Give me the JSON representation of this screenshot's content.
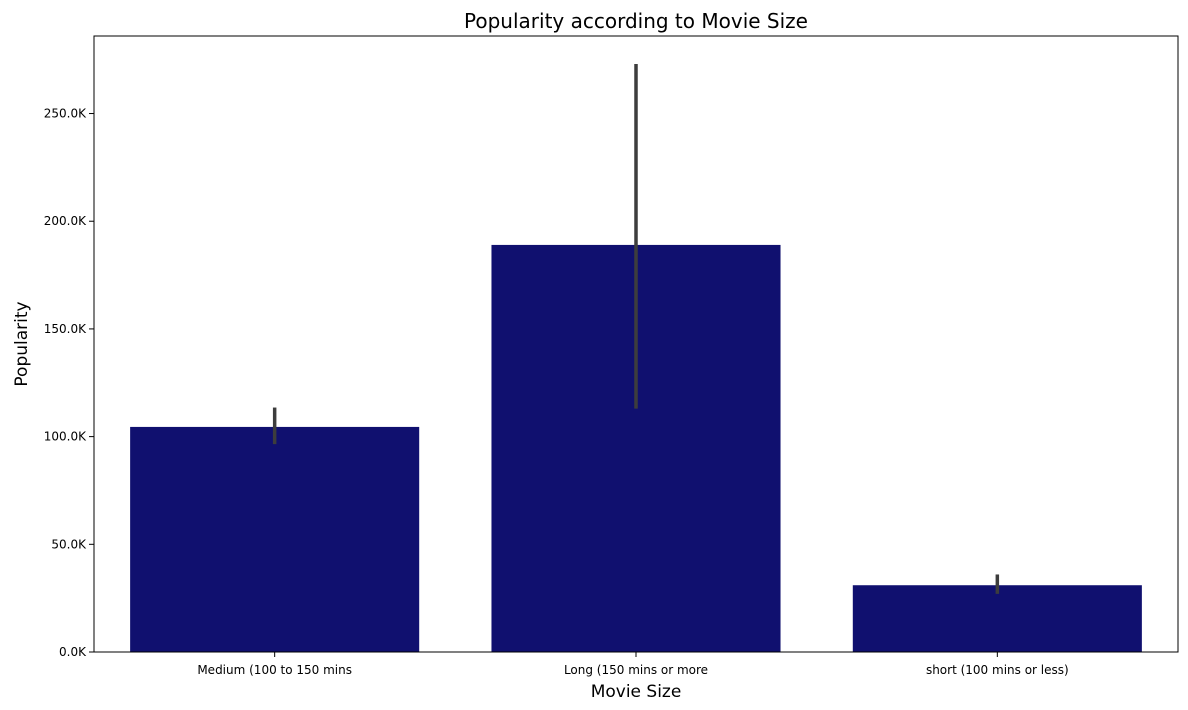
{
  "chart_data": {
    "type": "bar",
    "title": "Popularity according to Movie Size",
    "xlabel": "Movie Size",
    "ylabel": "Popularity",
    "categories": [
      "Medium (100 to 150 mins",
      "Long (150 mins or more",
      "short (100 mins or less)"
    ],
    "values": [
      104500,
      189000,
      31000
    ],
    "error_low": [
      96500,
      113000,
      27000
    ],
    "error_high": [
      113500,
      273000,
      36000
    ],
    "ylim": [
      0,
      286000
    ],
    "yticks": [
      0,
      50000,
      100000,
      150000,
      200000,
      250000
    ],
    "ytick_labels": [
      "0.0K",
      "50.0K",
      "100.0K",
      "150.0K",
      "200.0K",
      "250.0K"
    ],
    "grid": false,
    "bar_color": "#10106f",
    "error_color": "#3d3d3d"
  }
}
